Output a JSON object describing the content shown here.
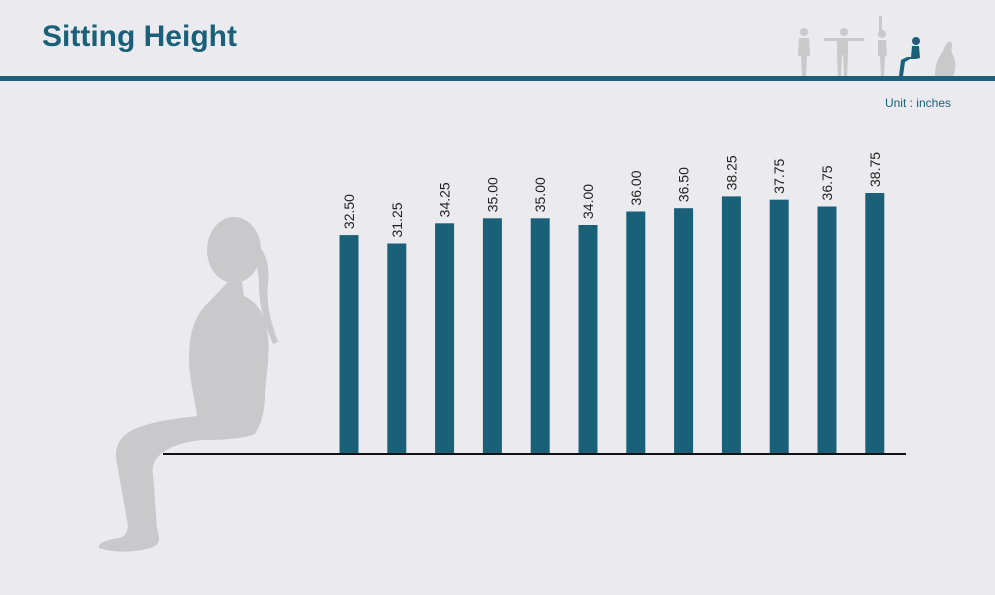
{
  "header": {
    "title": "Sitting Height",
    "unit_note": "Unit : inches",
    "pose_icons": [
      "standing-person-icon",
      "arms-out-person-icon",
      "arms-up-person-icon",
      "sitting-person-icon",
      "kneeling-person-icon"
    ],
    "active_pose": "sitting-person-icon"
  },
  "colors": {
    "accent": "#1a6079",
    "bar": "#1a6079",
    "silhouette": "#c9c9cc",
    "background": "#ebebef"
  },
  "chart_data": {
    "type": "bar",
    "title": "Sitting Height",
    "unit": "inches",
    "values": [
      32.5,
      31.25,
      34.25,
      35.0,
      35.0,
      34.0,
      36.0,
      36.5,
      38.25,
      37.75,
      36.75,
      38.75
    ],
    "value_labels": [
      "32.50",
      "31.25",
      "34.25",
      "35.00",
      "35.00",
      "34.00",
      "36.00",
      "36.50",
      "38.25",
      "37.75",
      "36.75",
      "38.75"
    ],
    "ylim": [
      0,
      38.75
    ],
    "grid": false,
    "legend": "none"
  }
}
